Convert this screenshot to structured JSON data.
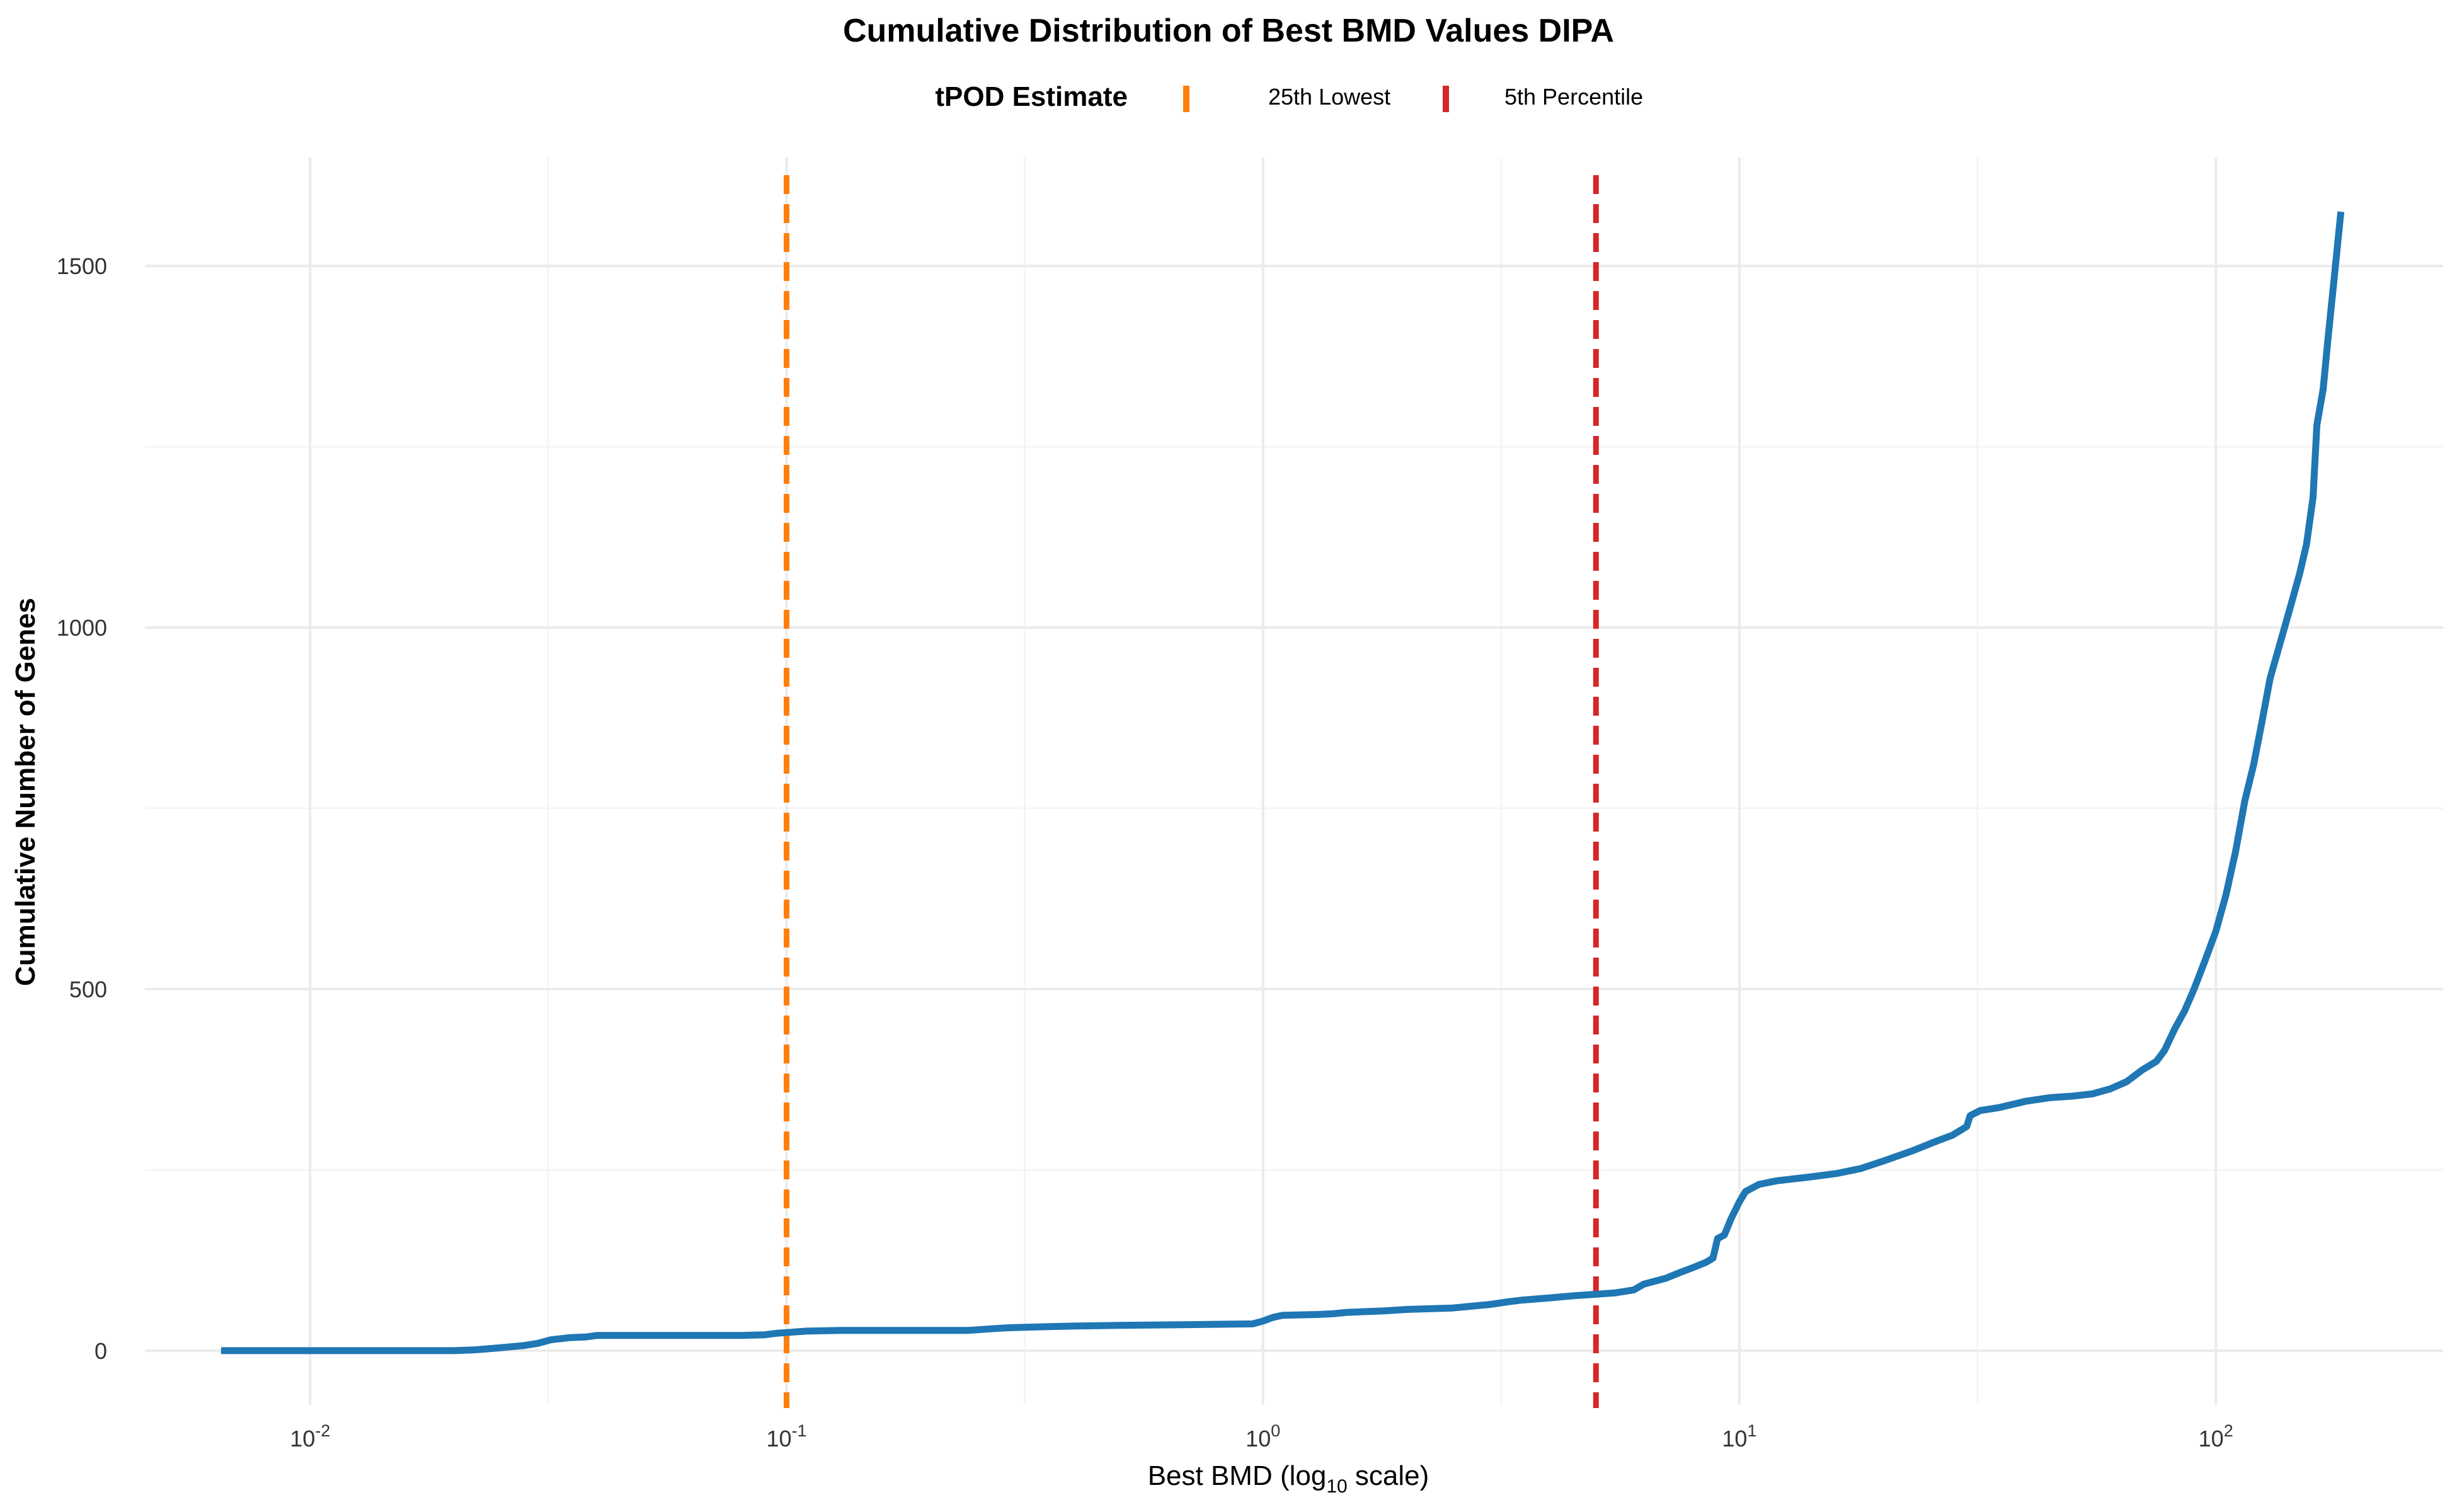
{
  "chart_data": {
    "type": "line",
    "title": "Cumulative Distribution of Best BMD Values DIPA",
    "xlabel": "Best BMD (log₁₀ scale)",
    "xlabel_parts": {
      "before": "Best BMD (log",
      "sub": "10",
      "after": " scale)"
    },
    "ylabel": "Cumulative Number of Genes",
    "x_scale": "log10",
    "xlim": [
      0.0045,
      300
    ],
    "ylim": [
      -75,
      1650
    ],
    "grid": true,
    "legend": {
      "title": "tPOD Estimate",
      "placement": "top",
      "entries": [
        {
          "label": "25th Lowest",
          "color": "#ff7f0e"
        },
        {
          "label": "5th Percentile",
          "color": "#d62728"
        }
      ]
    },
    "x_ticks": [
      {
        "value": 0.01,
        "base": "10",
        "exp": "-2"
      },
      {
        "value": 0.1,
        "base": "10",
        "exp": "-1"
      },
      {
        "value": 1,
        "base": "10",
        "exp": "0"
      },
      {
        "value": 10,
        "base": "10",
        "exp": "1"
      },
      {
        "value": 100,
        "base": "10",
        "exp": "2"
      }
    ],
    "y_ticks": [
      0,
      500,
      1000,
      1500
    ],
    "reference_lines": [
      {
        "name": "25th Lowest",
        "x": 0.1,
        "color": "#ff7f0e"
      },
      {
        "name": "5th Percentile",
        "x": 5,
        "color": "#d62728"
      }
    ],
    "series": [
      {
        "color": "#1f77b4",
        "points": [
          [
            0.0065,
            0
          ],
          [
            0.01,
            0
          ],
          [
            0.015,
            0
          ],
          [
            0.02,
            0
          ],
          [
            0.022,
            1
          ],
          [
            0.024,
            3
          ],
          [
            0.026,
            5
          ],
          [
            0.028,
            7
          ],
          [
            0.03,
            10
          ],
          [
            0.032,
            15
          ],
          [
            0.035,
            18
          ],
          [
            0.038,
            19
          ],
          [
            0.04,
            21
          ],
          [
            0.05,
            21
          ],
          [
            0.06,
            21
          ],
          [
            0.08,
            21
          ],
          [
            0.09,
            22
          ],
          [
            0.095,
            24
          ],
          [
            0.1,
            25
          ],
          [
            0.11,
            27
          ],
          [
            0.13,
            28
          ],
          [
            0.2,
            28
          ],
          [
            0.24,
            28
          ],
          [
            0.28,
            31
          ],
          [
            0.3,
            32
          ],
          [
            0.4,
            34
          ],
          [
            0.5,
            35
          ],
          [
            0.7,
            36
          ],
          [
            0.95,
            37
          ],
          [
            1.0,
            41
          ],
          [
            1.05,
            46
          ],
          [
            1.1,
            49
          ],
          [
            1.3,
            50
          ],
          [
            1.4,
            51
          ],
          [
            1.5,
            53
          ],
          [
            1.8,
            55
          ],
          [
            2.0,
            57
          ],
          [
            2.5,
            59
          ],
          [
            3.0,
            64
          ],
          [
            3.3,
            68
          ],
          [
            3.5,
            70
          ],
          [
            4.0,
            73
          ],
          [
            4.5,
            76
          ],
          [
            5.0,
            78
          ],
          [
            5.5,
            80
          ],
          [
            6.0,
            84
          ],
          [
            6.3,
            92
          ],
          [
            7.0,
            100
          ],
          [
            7.5,
            108
          ],
          [
            8.0,
            115
          ],
          [
            8.5,
            122
          ],
          [
            8.8,
            128
          ],
          [
            9.0,
            155
          ],
          [
            9.3,
            160
          ],
          [
            9.6,
            182
          ],
          [
            10,
            206
          ],
          [
            10.3,
            220
          ],
          [
            11,
            230
          ],
          [
            12,
            235
          ],
          [
            14,
            240
          ],
          [
            16,
            245
          ],
          [
            18,
            252
          ],
          [
            20,
            262
          ],
          [
            23,
            276
          ],
          [
            26,
            290
          ],
          [
            28,
            298
          ],
          [
            30,
            310
          ],
          [
            30.5,
            325
          ],
          [
            32,
            332
          ],
          [
            35,
            336
          ],
          [
            40,
            345
          ],
          [
            45,
            350
          ],
          [
            50,
            352
          ],
          [
            55,
            355
          ],
          [
            60,
            362
          ],
          [
            65,
            372
          ],
          [
            70,
            388
          ],
          [
            75,
            400
          ],
          [
            78,
            415
          ],
          [
            82,
            445
          ],
          [
            86,
            470
          ],
          [
            90,
            500
          ],
          [
            95,
            540
          ],
          [
            100,
            580
          ],
          [
            105,
            630
          ],
          [
            110,
            690
          ],
          [
            115,
            760
          ],
          [
            120,
            810
          ],
          [
            125,
            870
          ],
          [
            130,
            930
          ],
          [
            138,
            990
          ],
          [
            145,
            1040
          ],
          [
            150,
            1075
          ],
          [
            155,
            1115
          ],
          [
            160,
            1180
          ],
          [
            163,
            1280
          ],
          [
            168,
            1330
          ],
          [
            172,
            1400
          ],
          [
            177,
            1480
          ],
          [
            183,
            1575
          ]
        ]
      }
    ]
  }
}
